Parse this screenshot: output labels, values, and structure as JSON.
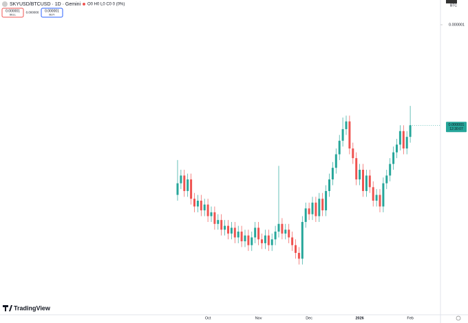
{
  "chart_data": {
    "type": "candlestick",
    "symbol_title": "SKYUSD/BTCUSD · 1D · Gemini",
    "ohlc_text": "O0 H0 L0 C0 0 (0%)",
    "currency": "BTC",
    "sell_price": "0.000001",
    "sell_label": "SELL",
    "spread": "0.000000",
    "buy_price": "0.000001",
    "buy_label": "BUY",
    "last_price": {
      "value": 9.48e-07,
      "label": "0.000001"
    },
    "countdown": "12:30:07",
    "brand": "TradingView",
    "up_color": "#26a69a",
    "down_color": "#ef5350",
    "ylim": [
      8.5e-07,
      1e-06
    ],
    "yticks": [
      1e-06
    ],
    "categories": [
      null,
      null,
      null,
      null,
      null,
      null,
      null,
      null,
      null,
      "Oct",
      null,
      null,
      null,
      null,
      null,
      null,
      null,
      null,
      null,
      null,
      null,
      null,
      null,
      null,
      "Nov",
      null,
      null,
      null,
      null,
      null,
      null,
      null,
      null,
      null,
      null,
      null,
      null,
      null,
      null,
      "Dec",
      null,
      null,
      null,
      null,
      null,
      null,
      null,
      null,
      null,
      null,
      null,
      null,
      null,
      null,
      "2026",
      null,
      null,
      null,
      null,
      null,
      null,
      null,
      null,
      null,
      null,
      null,
      null,
      null,
      null,
      "Feb"
    ],
    "open": [
      9.12e-07,
      9.18e-07,
      9.22e-07,
      9.14e-07,
      9.2e-07,
      9.1e-07,
      9.06e-07,
      9.09e-07,
      9.04e-07,
      9.07e-07,
      9.01e-07,
      9.03e-07,
      8.97e-07,
      8.99e-07,
      8.94e-07,
      8.96e-07,
      8.92e-07,
      8.95e-07,
      8.9e-07,
      8.93e-07,
      8.88e-07,
      8.91e-07,
      8.86e-07,
      8.9e-07,
      8.95e-07,
      8.89e-07,
      8.87e-07,
      8.91e-07,
      8.86e-07,
      8.89e-07,
      8.93e-07,
      8.97e-07,
      8.92e-07,
      8.94e-07,
      8.9e-07,
      8.86e-07,
      8.82e-07,
      8.79e-07,
      8.98e-07,
      9.05e-07,
      9.02e-07,
      9.08e-07,
      9.01e-07,
      9.1e-07,
      9.04e-07,
      9.14e-07,
      9.2e-07,
      9.26e-07,
      9.33e-07,
      9.4e-07,
      9.46e-07,
      9.5e-07,
      9.36e-07,
      9.31e-07,
      9.2e-07,
      9.25e-07,
      9.14e-07,
      9.22e-07,
      9.16e-07,
      9.09e-07,
      9.12e-07,
      9.06e-07,
      9.18e-07,
      9.22e-07,
      9.28e-07,
      9.34e-07,
      9.38e-07,
      9.45e-07,
      9.36e-07,
      9.42e-07
    ],
    "high": [
      9.3e-07,
      9.25e-07,
      9.25e-07,
      9.23e-07,
      9.23e-07,
      9.13e-07,
      9.12e-07,
      9.12e-07,
      9.1e-07,
      9.1e-07,
      9.06e-07,
      9.06e-07,
      9.02e-07,
      9.02e-07,
      8.99e-07,
      8.99e-07,
      8.98e-07,
      8.98e-07,
      8.96e-07,
      8.96e-07,
      8.94e-07,
      8.94e-07,
      8.93e-07,
      8.98e-07,
      8.98e-07,
      8.92e-07,
      8.94e-07,
      8.94e-07,
      8.92e-07,
      8.96e-07,
      9.27e-07,
      9e-07,
      8.97e-07,
      8.97e-07,
      8.93e-07,
      8.89e-07,
      8.85e-07,
      9.01e-07,
      9.08e-07,
      9.08e-07,
      9.11e-07,
      9.11e-07,
      9.13e-07,
      9.13e-07,
      9.17e-07,
      9.23e-07,
      9.29e-07,
      9.36e-07,
      9.43e-07,
      9.52e-07,
      9.53e-07,
      9.53e-07,
      9.39e-07,
      9.34e-07,
      9.28e-07,
      9.28e-07,
      9.25e-07,
      9.25e-07,
      9.19e-07,
      9.15e-07,
      9.15e-07,
      9.21e-07,
      9.25e-07,
      9.31e-07,
      9.37e-07,
      9.41e-07,
      9.48e-07,
      9.48e-07,
      9.45e-07,
      9.58e-07
    ],
    "low": [
      9.09e-07,
      9.15e-07,
      9.11e-07,
      9.11e-07,
      9.07e-07,
      9.03e-07,
      9.03e-07,
      9.01e-07,
      9.01e-07,
      8.98e-07,
      8.98e-07,
      8.94e-07,
      8.94e-07,
      8.91e-07,
      8.91e-07,
      8.89e-07,
      8.89e-07,
      8.87e-07,
      8.87e-07,
      8.85e-07,
      8.85e-07,
      8.83e-07,
      8.83e-07,
      8.87e-07,
      8.86e-07,
      8.84e-07,
      8.84e-07,
      8.83e-07,
      8.83e-07,
      8.86e-07,
      8.9e-07,
      8.89e-07,
      8.89e-07,
      8.87e-07,
      8.83e-07,
      8.79e-07,
      8.76e-07,
      8.76e-07,
      8.95e-07,
      8.99e-07,
      8.99e-07,
      8.98e-07,
      8.98e-07,
      9.01e-07,
      9.01e-07,
      9.11e-07,
      9.17e-07,
      9.23e-07,
      9.3e-07,
      9.37e-07,
      9.43e-07,
      9.33e-07,
      9.28e-07,
      9.17e-07,
      9.17e-07,
      9.11e-07,
      9.11e-07,
      9.13e-07,
      9.06e-07,
      9.06e-07,
      9.03e-07,
      9.03e-07,
      9.15e-07,
      9.19e-07,
      9.25e-07,
      9.31e-07,
      9.35e-07,
      9.33e-07,
      9.33e-07,
      9.39e-07
    ],
    "close": [
      9.18e-07,
      9.22e-07,
      9.14e-07,
      9.2e-07,
      9.1e-07,
      9.06e-07,
      9.09e-07,
      9.04e-07,
      9.07e-07,
      9.01e-07,
      9.03e-07,
      8.97e-07,
      8.99e-07,
      8.94e-07,
      8.96e-07,
      8.92e-07,
      8.95e-07,
      8.9e-07,
      8.93e-07,
      8.88e-07,
      8.91e-07,
      8.86e-07,
      8.9e-07,
      8.95e-07,
      8.89e-07,
      8.87e-07,
      8.91e-07,
      8.86e-07,
      8.89e-07,
      8.93e-07,
      8.97e-07,
      8.92e-07,
      8.94e-07,
      8.9e-07,
      8.86e-07,
      8.82e-07,
      8.79e-07,
      8.98e-07,
      9.05e-07,
      9.02e-07,
      9.08e-07,
      9.01e-07,
      9.1e-07,
      9.04e-07,
      9.14e-07,
      9.2e-07,
      9.26e-07,
      9.33e-07,
      9.4e-07,
      9.46e-07,
      9.5e-07,
      9.36e-07,
      9.31e-07,
      9.2e-07,
      9.25e-07,
      9.14e-07,
      9.22e-07,
      9.16e-07,
      9.09e-07,
      9.12e-07,
      9.06e-07,
      9.18e-07,
      9.22e-07,
      9.28e-07,
      9.34e-07,
      9.38e-07,
      9.45e-07,
      9.36e-07,
      9.42e-07,
      9.48e-07
    ]
  }
}
